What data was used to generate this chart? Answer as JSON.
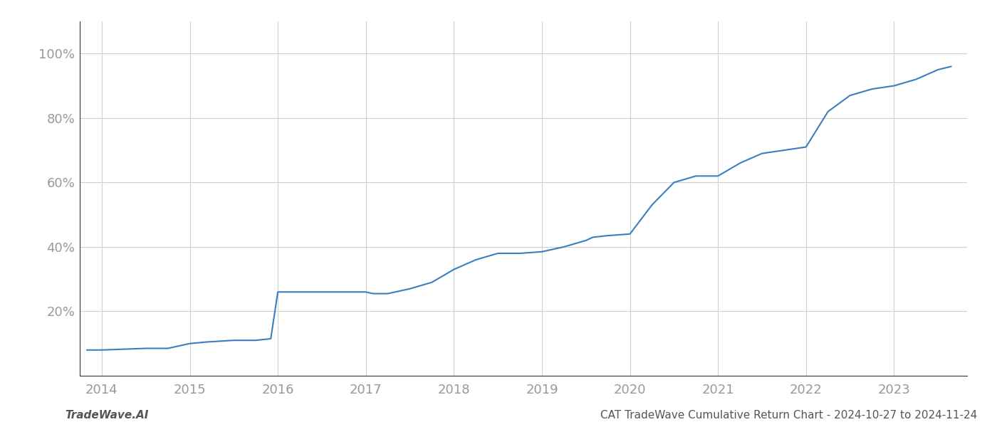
{
  "x_years": [
    2013.83,
    2014.0,
    2014.2,
    2014.5,
    2014.75,
    2015.0,
    2015.2,
    2015.5,
    2015.75,
    2015.92,
    2016.0,
    2016.1,
    2016.25,
    2016.5,
    2016.75,
    2017.0,
    2017.08,
    2017.25,
    2017.5,
    2017.75,
    2018.0,
    2018.25,
    2018.5,
    2018.75,
    2019.0,
    2019.25,
    2019.5,
    2019.58,
    2019.75,
    2020.0,
    2020.25,
    2020.5,
    2020.75,
    2021.0,
    2021.25,
    2021.5,
    2021.75,
    2022.0,
    2022.25,
    2022.5,
    2022.75,
    2023.0,
    2023.25,
    2023.5,
    2023.65
  ],
  "y_values": [
    8,
    8,
    8.2,
    8.5,
    8.5,
    10,
    10.5,
    11,
    11,
    11.5,
    26,
    26,
    26,
    26,
    26,
    26,
    25.5,
    25.5,
    27,
    29,
    33,
    36,
    38,
    38,
    38.5,
    40,
    42,
    43,
    43.5,
    44,
    53,
    60,
    62,
    62,
    66,
    69,
    70,
    71,
    82,
    87,
    89,
    90,
    92,
    95,
    96
  ],
  "line_color": "#3a7ebf",
  "line_width": 1.5,
  "background_color": "#ffffff",
  "grid_color": "#d0d0d0",
  "xlim": [
    2013.75,
    2023.83
  ],
  "ylim": [
    0,
    110
  ],
  "yticks": [
    20,
    40,
    60,
    80,
    100
  ],
  "xticks": [
    2014,
    2015,
    2016,
    2017,
    2018,
    2019,
    2020,
    2021,
    2022,
    2023
  ],
  "xlabel": "",
  "ylabel": "",
  "title": "",
  "footer_left": "TradeWave.AI",
  "footer_right": "CAT TradeWave Cumulative Return Chart - 2024-10-27 to 2024-11-24",
  "footer_fontsize": 11,
  "tick_fontsize": 13
}
